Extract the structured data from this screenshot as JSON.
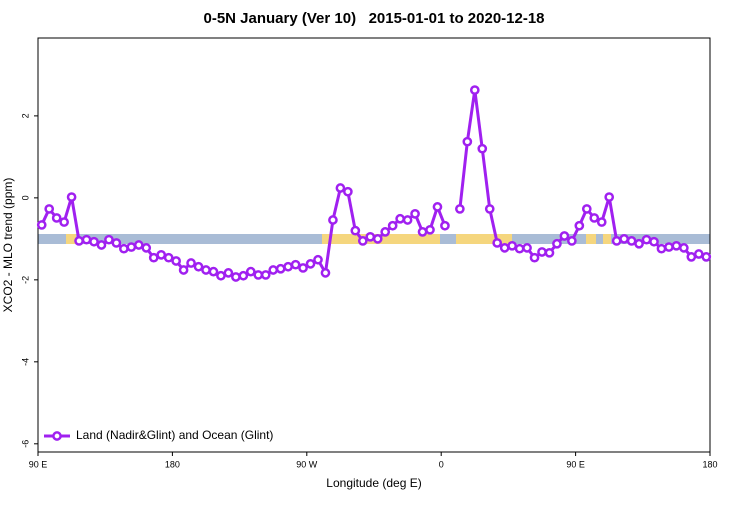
{
  "chart_data": {
    "type": "line",
    "title": "0-5N January (Ver 10)   2015-01-01 to 2020-12-18",
    "x_label": "Longitude (deg E)",
    "y_label": "XCO2 - MLO trend (ppm)",
    "x": [
      92.5,
      97.5,
      102.5,
      107.5,
      112.5,
      117.5,
      122.5,
      127.5,
      132.5,
      137.5,
      142.5,
      147.5,
      152.5,
      157.5,
      162.5,
      167.5,
      172.5,
      177.5,
      182.5,
      187.5,
      192.5,
      197.5,
      202.5,
      207.5,
      212.5,
      217.5,
      222.5,
      227.5,
      232.5,
      237.5,
      242.5,
      247.5,
      252.5,
      257.5,
      262.5,
      267.5,
      272.5,
      277.5,
      282.5,
      287.5,
      292.5,
      297.5,
      302.5,
      307.5,
      312.5,
      317.5,
      322.5,
      327.5,
      332.5,
      337.5,
      342.5,
      347.5,
      352.5,
      357.5,
      362.5,
      367.5,
      372.5,
      377.5,
      382.5,
      387.5,
      392.5,
      397.5,
      402.5,
      407.5,
      412.5,
      417.5,
      422.5,
      427.5,
      432.5,
      437.5,
      442.5,
      447.5,
      452.5,
      457.5,
      462.5,
      467.5,
      472.5,
      477.5,
      482.5,
      487.5,
      492.5,
      497.5,
      502.5,
      507.5,
      512.5,
      517.5,
      522.5,
      527.5,
      532.5,
      537.5
    ],
    "series": [
      {
        "name": "Land (Nadir&Glint) and Ocean (Glint)",
        "color": "#a020f0",
        "values": [
          -0.66,
          -0.27,
          -0.49,
          -0.59,
          0.02,
          -1.05,
          -1.02,
          -1.07,
          -1.15,
          -1.02,
          -1.1,
          -1.24,
          -1.2,
          -1.15,
          -1.22,
          -1.46,
          -1.39,
          -1.46,
          -1.54,
          -1.76,
          -1.59,
          -1.68,
          -1.76,
          -1.8,
          -1.9,
          -1.83,
          -1.93,
          -1.9,
          -1.8,
          -1.88,
          -1.88,
          -1.76,
          -1.73,
          -1.68,
          -1.63,
          -1.71,
          -1.61,
          -1.51,
          -1.83,
          -0.54,
          0.24,
          0.15,
          -0.8,
          -1.05,
          -0.95,
          -1.0,
          -0.83,
          -0.68,
          -0.51,
          -0.54,
          -0.39,
          -0.83,
          -0.78,
          -0.22,
          -0.68,
          null,
          -0.27,
          1.37,
          2.63,
          1.2,
          -0.27,
          -1.1,
          -1.22,
          -1.17,
          -1.24,
          -1.22,
          -1.46,
          -1.32,
          -1.34,
          -1.12,
          -0.93,
          -1.05,
          -0.68,
          -0.27,
          -0.49,
          -0.59,
          0.02,
          -1.05,
          -1.0,
          -1.05,
          -1.12,
          -1.02,
          -1.07,
          -1.24,
          -1.2,
          -1.17,
          -1.22,
          -1.44,
          -1.37,
          -1.44
        ]
      }
    ],
    "xlim": [
      90,
      540
    ],
    "xticks": [
      {
        "value": 90,
        "label": "90 E"
      },
      180,
      {
        "value": 270,
        "label": "90 W"
      },
      {
        "value": 360,
        "label": "0"
      },
      {
        "value": 450,
        "label": "90 E"
      },
      {
        "value": 540,
        "label": "180"
      }
    ],
    "ylim": [
      -6.2,
      3.9
    ],
    "yticks": [
      -6,
      -4,
      -2,
      0,
      2
    ],
    "legend": "bottomleft"
  }
}
